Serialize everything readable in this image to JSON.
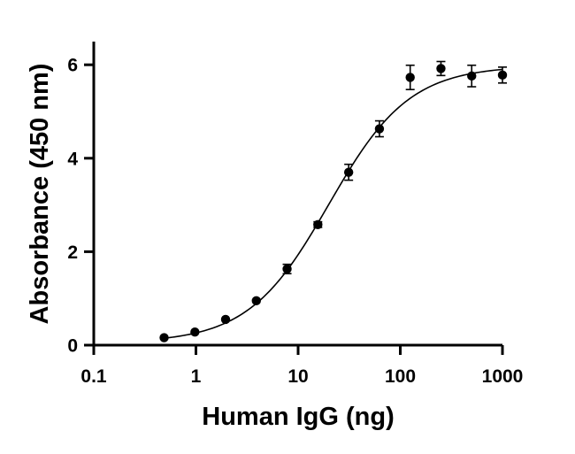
{
  "chart_data": {
    "type": "scatter",
    "title": "",
    "xlabel": "Human IgG (ng)",
    "ylabel": "Absorbance (450 nm)",
    "xscale": "log",
    "xlim": [
      0.1,
      1000
    ],
    "ylim": [
      0,
      6.5
    ],
    "x_ticks": [
      {
        "value": 0.1,
        "label": "0.1"
      },
      {
        "value": 1,
        "label": "1"
      },
      {
        "value": 10,
        "label": "10"
      },
      {
        "value": 100,
        "label": "100"
      },
      {
        "value": 1000,
        "label": "1000"
      }
    ],
    "y_ticks": [
      {
        "value": 0,
        "label": "0"
      },
      {
        "value": 2,
        "label": "2"
      },
      {
        "value": 4,
        "label": "4"
      },
      {
        "value": 6,
        "label": "6"
      }
    ],
    "grid": false,
    "legend": "none",
    "points": [
      {
        "x": 0.488,
        "y": 0.16,
        "err": 0.02
      },
      {
        "x": 0.977,
        "y": 0.28,
        "err": 0.03
      },
      {
        "x": 1.95,
        "y": 0.55,
        "err": 0.03
      },
      {
        "x": 3.9,
        "y": 0.95,
        "err": 0.04
      },
      {
        "x": 7.8,
        "y": 1.63,
        "err": 0.1
      },
      {
        "x": 15.6,
        "y": 2.58,
        "err": 0.06
      },
      {
        "x": 31.25,
        "y": 3.7,
        "err": 0.17
      },
      {
        "x": 62.5,
        "y": 4.63,
        "err": 0.17
      },
      {
        "x": 125,
        "y": 5.73,
        "err": 0.26
      },
      {
        "x": 250,
        "y": 5.92,
        "err": 0.15
      },
      {
        "x": 500,
        "y": 5.76,
        "err": 0.23
      },
      {
        "x": 1000,
        "y": 5.78,
        "err": 0.17
      }
    ],
    "fit": {
      "model": "4PL",
      "bottom": 0.05,
      "top": 5.98,
      "ec50": 20,
      "hill": 1.1,
      "x_range": [
        0.488,
        1000
      ]
    }
  }
}
